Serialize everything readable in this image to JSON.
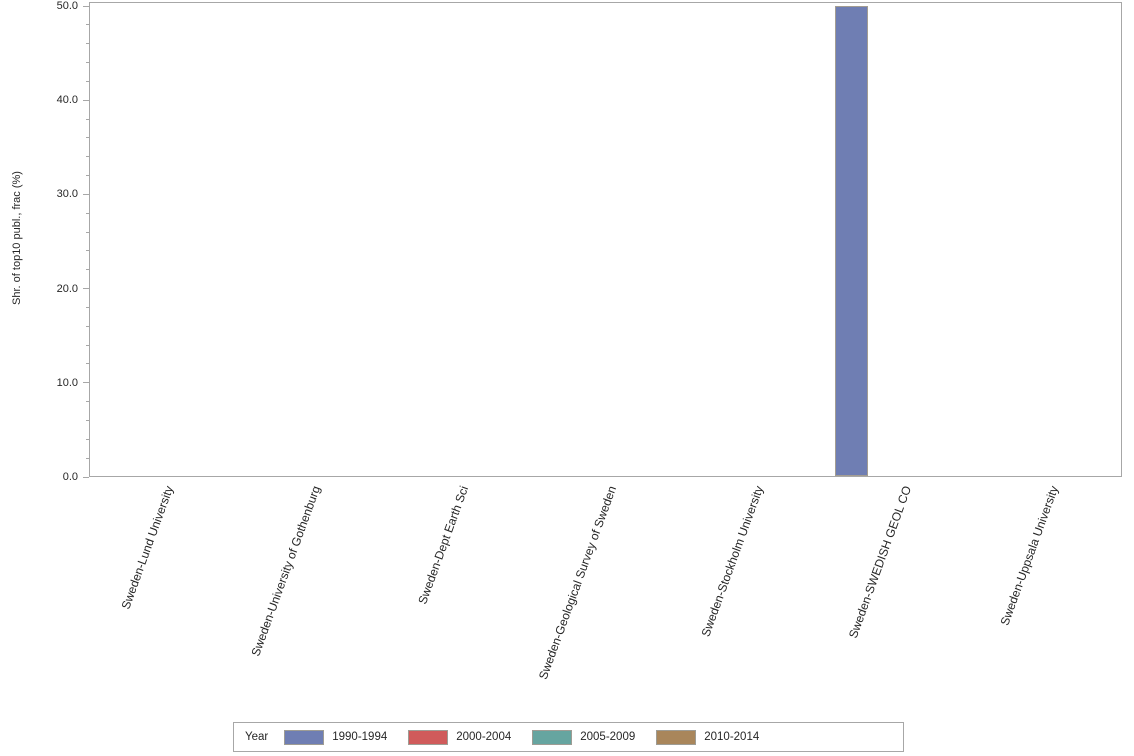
{
  "chart_data": {
    "type": "bar",
    "title": "",
    "xlabel": "",
    "ylabel": "Shr. of top10 publ., frac (%)",
    "ylim": [
      0,
      50
    ],
    "yticks": [
      0,
      10,
      20,
      30,
      40,
      50
    ],
    "ytick_labels": [
      "0.0",
      "10.0",
      "20.0",
      "30.0",
      "40.0",
      "50.0"
    ],
    "minor_tick_interval": 2,
    "grid": false,
    "categories": [
      "Sweden-Lund University",
      "Sweden-University of Gothenburg",
      "Sweden-Dept Earth Sci",
      "Sweden-Geological Survey of Sweden",
      "Sweden-Stockholm University",
      "Sweden-SWEDISH GEOL CO",
      "Sweden-Uppsala University"
    ],
    "series": [
      {
        "name": "1990-1994",
        "color": "#6F7EB3",
        "values": [
          0,
          0,
          0,
          0,
          0,
          49.9,
          0
        ]
      },
      {
        "name": "2000-2004",
        "color": "#D05B5B",
        "values": [
          0,
          0,
          0,
          0,
          0,
          0,
          0
        ]
      },
      {
        "name": "2005-2009",
        "color": "#66A5A0",
        "values": [
          0,
          0,
          0,
          0,
          0,
          0,
          0
        ]
      },
      {
        "name": "2010-2014",
        "color": "#A9865B",
        "values": [
          0,
          0,
          0,
          0,
          0,
          0,
          0
        ]
      }
    ],
    "legend": {
      "title": "Year",
      "position": "bottom"
    },
    "axis_color": "#a7a7a7",
    "bar_outline_color": "#a39d92"
  }
}
